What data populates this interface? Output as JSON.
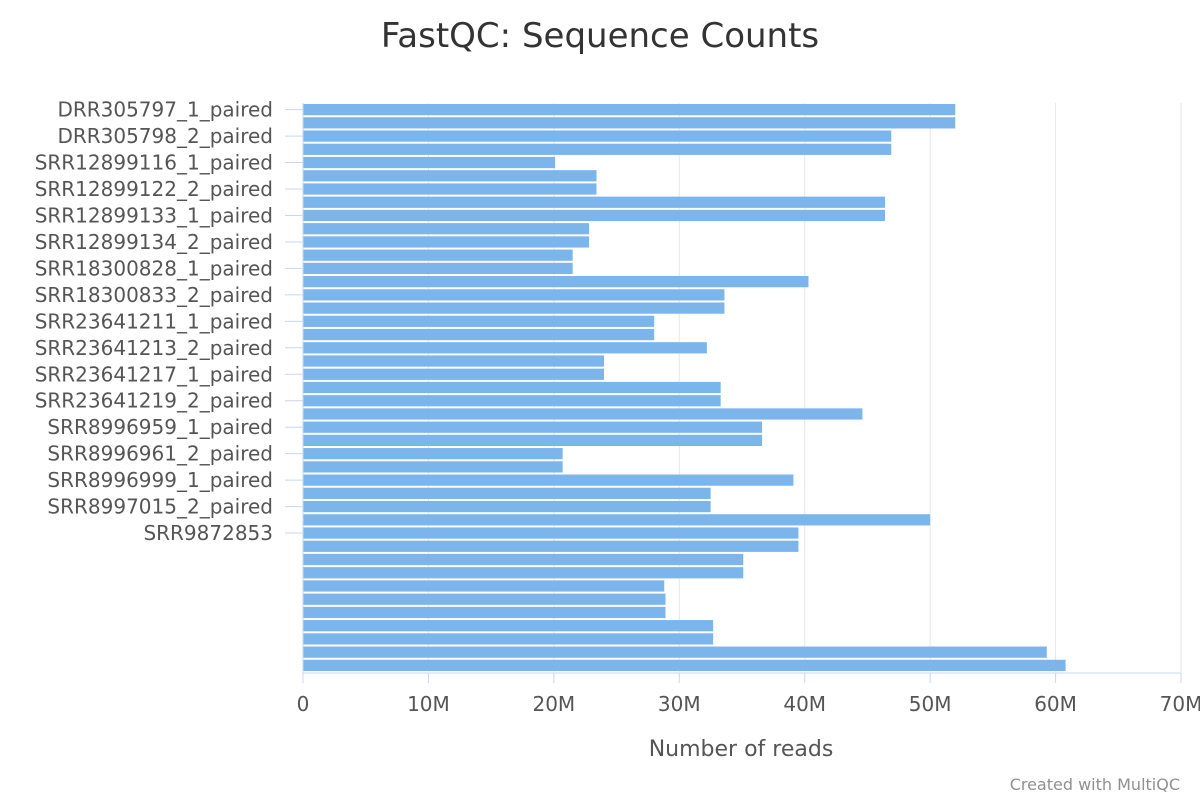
{
  "credit": "Created with MultiQC",
  "chart_data": {
    "type": "bar",
    "orientation": "horizontal",
    "title": "FastQC: Sequence Counts",
    "xlabel": "Number of reads",
    "ylabel": "",
    "xlim": [
      0,
      70000000
    ],
    "x_tick_labels": [
      "0",
      "10M",
      "20M",
      "30M",
      "40M",
      "50M",
      "60M",
      "70M"
    ],
    "x_tick_values": [
      0,
      10000000,
      20000000,
      30000000,
      40000000,
      50000000,
      60000000,
      70000000
    ],
    "grid": true,
    "legend": "none",
    "color": "#7cb5ec",
    "labeled_categories": [
      "DRR305797_1_paired",
      "DRR305798_2_paired",
      "SRR12899116_1_paired",
      "SRR12899122_2_paired",
      "SRR12899133_1_paired",
      "SRR12899134_2_paired",
      "SRR18300828_1_paired",
      "SRR18300833_2_paired",
      "SRR23641211_1_paired",
      "SRR23641213_2_paired",
      "SRR23641217_1_paired",
      "SRR23641219_2_paired",
      "SRR8996959_1_paired",
      "SRR8996961_2_paired",
      "SRR8996999_1_paired",
      "SRR8997015_2_paired",
      "SRR9872853"
    ],
    "values": [
      52000000,
      52000000,
      46900000,
      46900000,
      20100000,
      23400000,
      23400000,
      46400000,
      46400000,
      22800000,
      22800000,
      21500000,
      21500000,
      40300000,
      33600000,
      33600000,
      28000000,
      28000000,
      32200000,
      24000000,
      24000000,
      33300000,
      33300000,
      44600000,
      36600000,
      36600000,
      20700000,
      20700000,
      39100000,
      32500000,
      32500000,
      50000000,
      39500000,
      39500000,
      35100000,
      35100000,
      28800000,
      28900000,
      28900000,
      32700000,
      32700000,
      59300000,
      60800000
    ]
  }
}
